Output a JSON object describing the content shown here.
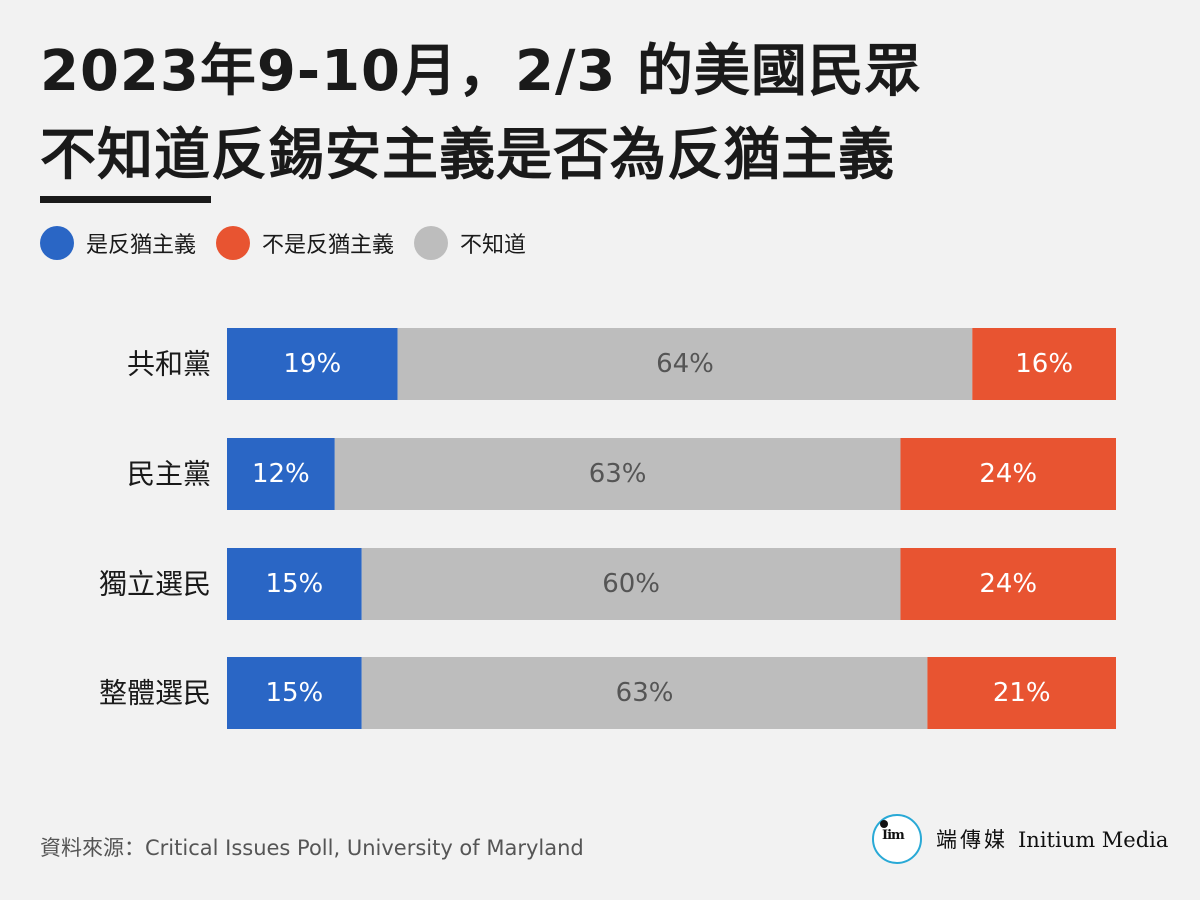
{
  "title": {
    "line1": "2023年9-10月，2/3 的美國民眾",
    "line2_emph": "不知道",
    "line2_rest": "反錫安主義是否為反猶主義"
  },
  "colors": {
    "yes": "#2a66c5",
    "unknown": "#bdbdbd",
    "no": "#e85431",
    "label_light": "#ffffff",
    "label_dark": "#555555"
  },
  "chart_data": {
    "type": "bar",
    "orientation": "horizontal",
    "stacked": true,
    "categories": [
      "共和黨",
      "民主黨",
      "獨立選民",
      "整體選民"
    ],
    "series": [
      {
        "name": "是反猶主義",
        "color": "#2a66c5",
        "values": [
          19,
          12,
          15,
          15
        ],
        "labels": [
          "19%",
          "12%",
          "15%",
          "15%"
        ]
      },
      {
        "name": "不知道",
        "color": "#bdbdbd",
        "values": [
          64,
          63,
          60,
          63
        ],
        "labels": [
          "64%",
          "63%",
          "60%",
          "63%"
        ]
      },
      {
        "name": "不是反猶主義",
        "color": "#e85431",
        "values": [
          16,
          24,
          24,
          21
        ],
        "labels": [
          "16%",
          "24%",
          "24%",
          "21%"
        ]
      }
    ],
    "legend": [
      {
        "label": "是反猶主義",
        "color": "#2a66c5"
      },
      {
        "label": "不是反猶主義",
        "color": "#e85431"
      },
      {
        "label": "不知道",
        "color": "#bdbdbd"
      }
    ],
    "legend_position": "top-left",
    "grid": false
  },
  "source": "資料來源：Critical Issues Poll, University of Maryland",
  "logo": {
    "mark": "Iim",
    "zh": "端傳媒",
    "en": "Initium Media"
  }
}
